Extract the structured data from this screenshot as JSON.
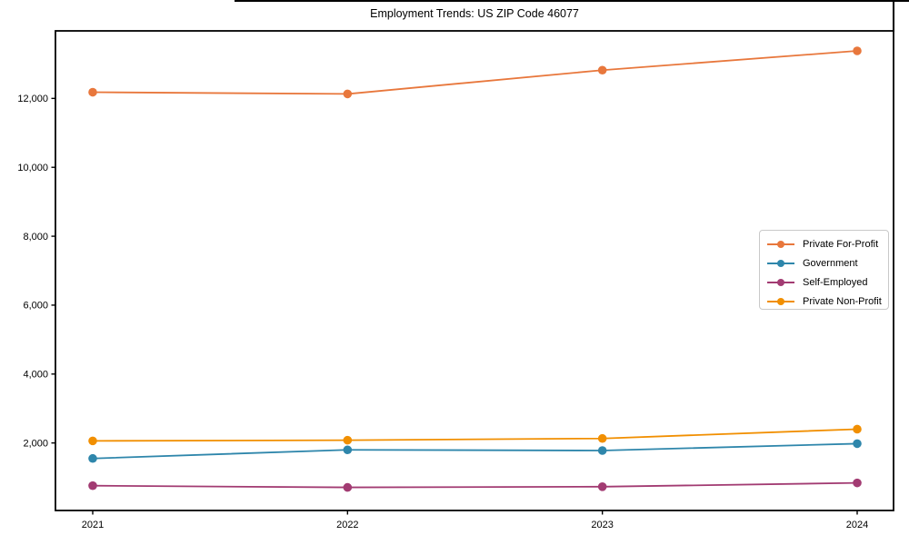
{
  "title": "Employment Trends: US ZIP Code 46077",
  "chart_data": {
    "type": "line",
    "title": "Employment Trends: US ZIP Code 46077",
    "categories": [
      "2021",
      "2022",
      "2023",
      "2024"
    ],
    "series": [
      {
        "name": "Private For-Profit",
        "color": "#E8773C",
        "values": [
          12180,
          12130,
          12820,
          13380
        ]
      },
      {
        "name": "Government",
        "color": "#2E86AB",
        "values": [
          1550,
          1800,
          1780,
          1980
        ]
      },
      {
        "name": "Self-Employed",
        "color": "#A23B72",
        "values": [
          760,
          710,
          730,
          840
        ]
      },
      {
        "name": "Private Non-Profit",
        "color": "#F18F01",
        "values": [
          2060,
          2080,
          2130,
          2400
        ]
      }
    ],
    "xlabel": "",
    "ylabel": "",
    "yticks": [
      2000,
      4000,
      6000,
      8000,
      10000,
      12000
    ],
    "ytick_labels": [
      "2,000",
      "4,000",
      "6,000",
      "8,000",
      "10,000",
      "12,000"
    ],
    "ylim": [
      40,
      13960
    ],
    "grid": false,
    "marker": "circle",
    "legend_position": "center right",
    "axis_color": "#000000",
    "background_color": "#ffffff"
  }
}
